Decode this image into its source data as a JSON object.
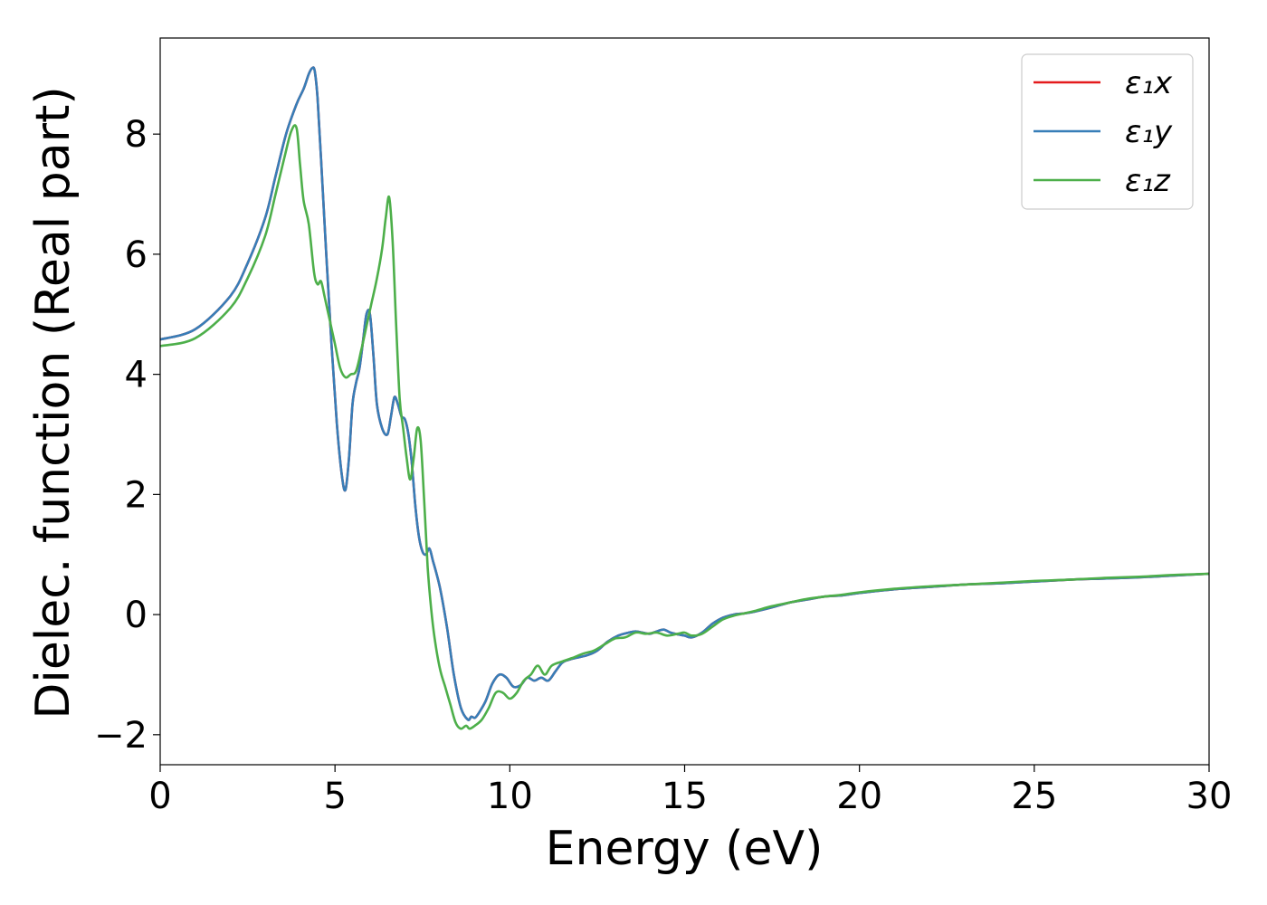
{
  "chart_data": {
    "type": "line",
    "title": "",
    "xlabel": "Energy (eV)",
    "ylabel": "Dielec. function (Real part)",
    "xlim": [
      0,
      30
    ],
    "ylim": [
      -2.5,
      9.6
    ],
    "xticks": [
      0,
      5,
      10,
      15,
      20,
      25,
      30
    ],
    "yticks": [
      -2,
      0,
      2,
      4,
      6,
      8
    ],
    "xtick_labels": [
      "0",
      "5",
      "10",
      "15",
      "20",
      "25",
      "30"
    ],
    "ytick_labels": [
      "−2",
      "0",
      "2",
      "4",
      "6",
      "8"
    ],
    "grid": false,
    "legend_position": "top-right",
    "series": [
      {
        "name": "ε₁x",
        "color": "#e41a1c",
        "x": [
          0,
          1,
          2,
          2.5,
          3,
          3.3,
          3.6,
          3.9,
          4.1,
          4.25,
          4.35,
          4.42,
          4.5,
          4.6,
          4.75,
          4.9,
          5.05,
          5.2,
          5.3,
          5.4,
          5.5,
          5.6,
          5.7,
          5.8,
          5.9,
          6.0,
          6.1,
          6.2,
          6.35,
          6.5,
          6.6,
          6.7,
          6.8,
          6.9,
          7.0,
          7.1,
          7.2,
          7.3,
          7.4,
          7.5,
          7.6,
          7.7,
          7.8,
          8.0,
          8.2,
          8.4,
          8.6,
          8.8,
          8.9,
          9.0,
          9.1,
          9.3,
          9.5,
          9.7,
          9.9,
          10.1,
          10.3,
          10.5,
          10.7,
          10.9,
          11.1,
          11.3,
          11.5,
          11.7,
          11.9,
          12.2,
          12.5,
          12.8,
          13.1,
          13.4,
          13.6,
          13.8,
          14.0,
          14.2,
          14.4,
          14.6,
          14.8,
          15.0,
          15.2,
          15.5,
          15.8,
          16.1,
          16.4,
          16.7,
          17.0,
          17.5,
          18.0,
          18.5,
          19.0,
          19.5,
          20.0,
          21.0,
          22.0,
          23.0,
          24.0,
          25.0,
          26.0,
          27.0,
          28.0,
          29.0,
          30.0
        ],
        "y": [
          4.58,
          4.75,
          5.3,
          5.85,
          6.6,
          7.3,
          8.0,
          8.5,
          8.75,
          9.0,
          9.1,
          9.05,
          8.6,
          7.6,
          6.0,
          4.5,
          3.2,
          2.3,
          2.08,
          2.6,
          3.5,
          3.85,
          4.1,
          4.55,
          5.0,
          5.0,
          4.3,
          3.5,
          3.1,
          3.0,
          3.3,
          3.62,
          3.5,
          3.3,
          3.25,
          3.0,
          2.5,
          1.8,
          1.3,
          1.05,
          1.0,
          1.1,
          0.9,
          0.45,
          -0.2,
          -1.0,
          -1.55,
          -1.75,
          -1.7,
          -1.72,
          -1.65,
          -1.45,
          -1.15,
          -1.0,
          -1.05,
          -1.2,
          -1.18,
          -1.05,
          -1.1,
          -1.05,
          -1.1,
          -0.95,
          -0.8,
          -0.75,
          -0.72,
          -0.68,
          -0.6,
          -0.45,
          -0.35,
          -0.3,
          -0.28,
          -0.3,
          -0.32,
          -0.28,
          -0.25,
          -0.3,
          -0.33,
          -0.35,
          -0.38,
          -0.3,
          -0.15,
          -0.05,
          0.0,
          0.02,
          0.05,
          0.12,
          0.2,
          0.25,
          0.3,
          0.32,
          0.36,
          0.42,
          0.46,
          0.5,
          0.52,
          0.55,
          0.58,
          0.6,
          0.62,
          0.65,
          0.68
        ]
      },
      {
        "name": "ε₁y",
        "color": "#377eb8",
        "x": [
          0,
          1,
          2,
          2.5,
          3,
          3.3,
          3.6,
          3.9,
          4.1,
          4.25,
          4.35,
          4.42,
          4.5,
          4.6,
          4.75,
          4.9,
          5.05,
          5.2,
          5.3,
          5.4,
          5.5,
          5.6,
          5.7,
          5.8,
          5.9,
          6.0,
          6.1,
          6.2,
          6.35,
          6.5,
          6.6,
          6.7,
          6.8,
          6.9,
          7.0,
          7.1,
          7.2,
          7.3,
          7.4,
          7.5,
          7.6,
          7.7,
          7.8,
          8.0,
          8.2,
          8.4,
          8.6,
          8.8,
          8.9,
          9.0,
          9.1,
          9.3,
          9.5,
          9.7,
          9.9,
          10.1,
          10.3,
          10.5,
          10.7,
          10.9,
          11.1,
          11.3,
          11.5,
          11.7,
          11.9,
          12.2,
          12.5,
          12.8,
          13.1,
          13.4,
          13.6,
          13.8,
          14.0,
          14.2,
          14.4,
          14.6,
          14.8,
          15.0,
          15.2,
          15.5,
          15.8,
          16.1,
          16.4,
          16.7,
          17.0,
          17.5,
          18.0,
          18.5,
          19.0,
          19.5,
          20.0,
          21.0,
          22.0,
          23.0,
          24.0,
          25.0,
          26.0,
          27.0,
          28.0,
          29.0,
          30.0
        ],
        "y": [
          4.58,
          4.75,
          5.3,
          5.85,
          6.6,
          7.3,
          8.0,
          8.5,
          8.75,
          9.0,
          9.1,
          9.05,
          8.6,
          7.6,
          6.0,
          4.5,
          3.2,
          2.3,
          2.08,
          2.6,
          3.5,
          3.85,
          4.1,
          4.55,
          5.0,
          5.0,
          4.3,
          3.5,
          3.1,
          3.0,
          3.3,
          3.62,
          3.5,
          3.3,
          3.25,
          3.0,
          2.5,
          1.8,
          1.3,
          1.05,
          1.0,
          1.1,
          0.9,
          0.45,
          -0.2,
          -1.0,
          -1.55,
          -1.75,
          -1.7,
          -1.72,
          -1.65,
          -1.45,
          -1.15,
          -1.0,
          -1.05,
          -1.2,
          -1.18,
          -1.05,
          -1.1,
          -1.05,
          -1.1,
          -0.95,
          -0.8,
          -0.75,
          -0.72,
          -0.68,
          -0.6,
          -0.45,
          -0.35,
          -0.3,
          -0.28,
          -0.3,
          -0.32,
          -0.28,
          -0.25,
          -0.3,
          -0.33,
          -0.35,
          -0.38,
          -0.3,
          -0.15,
          -0.05,
          0.0,
          0.02,
          0.05,
          0.12,
          0.2,
          0.25,
          0.3,
          0.32,
          0.36,
          0.42,
          0.46,
          0.5,
          0.52,
          0.55,
          0.58,
          0.6,
          0.62,
          0.65,
          0.68
        ]
      },
      {
        "name": "ε₁z",
        "color": "#4daf4a",
        "x": [
          0,
          1,
          2,
          2.5,
          3,
          3.3,
          3.55,
          3.75,
          3.9,
          4.0,
          4.1,
          4.25,
          4.4,
          4.5,
          4.6,
          4.7,
          4.85,
          5.0,
          5.15,
          5.3,
          5.45,
          5.6,
          5.75,
          5.9,
          6.05,
          6.2,
          6.35,
          6.45,
          6.55,
          6.65,
          6.75,
          6.85,
          6.95,
          7.05,
          7.15,
          7.25,
          7.35,
          7.45,
          7.55,
          7.65,
          7.75,
          7.85,
          8.0,
          8.15,
          8.3,
          8.45,
          8.6,
          8.75,
          8.85,
          9.0,
          9.2,
          9.4,
          9.6,
          9.8,
          10.0,
          10.2,
          10.4,
          10.6,
          10.8,
          11.0,
          11.2,
          11.5,
          11.8,
          12.1,
          12.4,
          12.7,
          13.0,
          13.3,
          13.6,
          13.9,
          14.2,
          14.5,
          14.8,
          15.0,
          15.2,
          15.5,
          15.8,
          16.1,
          16.4,
          16.7,
          17.0,
          17.5,
          18.0,
          18.5,
          19.0,
          19.5,
          20.0,
          21.0,
          22.0,
          23.0,
          24.0,
          25.0,
          26.0,
          27.0,
          28.0,
          29.0,
          30.0
        ],
        "y": [
          4.47,
          4.6,
          5.1,
          5.6,
          6.3,
          7.0,
          7.6,
          8.05,
          8.1,
          7.5,
          6.9,
          6.5,
          5.7,
          5.5,
          5.55,
          5.3,
          4.9,
          4.5,
          4.1,
          3.95,
          4.0,
          4.05,
          4.4,
          4.8,
          5.2,
          5.6,
          6.1,
          6.6,
          6.95,
          6.2,
          4.8,
          3.6,
          3.1,
          2.6,
          2.25,
          2.6,
          3.1,
          2.9,
          1.9,
          0.8,
          0.1,
          -0.4,
          -0.9,
          -1.2,
          -1.5,
          -1.8,
          -1.9,
          -1.85,
          -1.9,
          -1.85,
          -1.75,
          -1.55,
          -1.3,
          -1.3,
          -1.4,
          -1.3,
          -1.1,
          -1.0,
          -0.85,
          -1.0,
          -0.85,
          -0.78,
          -0.72,
          -0.65,
          -0.6,
          -0.5,
          -0.4,
          -0.38,
          -0.3,
          -0.32,
          -0.3,
          -0.35,
          -0.32,
          -0.3,
          -0.35,
          -0.32,
          -0.2,
          -0.08,
          -0.02,
          0.02,
          0.06,
          0.14,
          0.2,
          0.26,
          0.3,
          0.33,
          0.37,
          0.43,
          0.47,
          0.5,
          0.53,
          0.56,
          0.58,
          0.61,
          0.63,
          0.66,
          0.68
        ]
      }
    ]
  }
}
